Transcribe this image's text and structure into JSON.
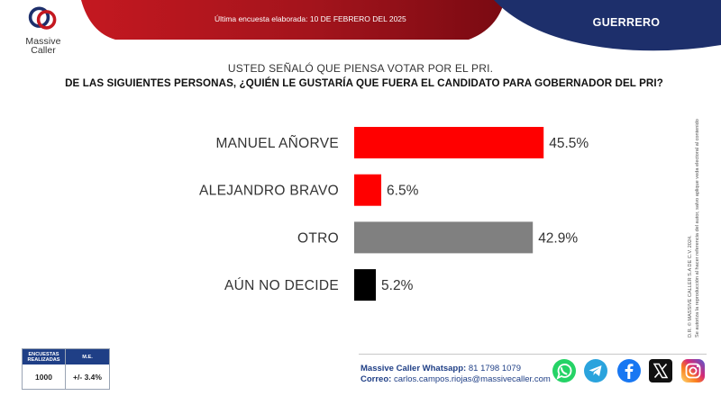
{
  "header": {
    "logo_name": "Massive",
    "logo_name2": "Caller",
    "survey_date": "Última encuesta elaborada: 10 DE FEBRERO DEL 2025",
    "state": "GUERRERO",
    "colors": {
      "red": "#a3141c",
      "navy": "#1d2f6b"
    }
  },
  "question": {
    "line1": "USTED SEÑALÓ QUE PIENSA VOTAR POR EL PRI.",
    "line2": "DE LAS SIGUIENTES PERSONAS, ¿QUIÉN LE GUSTARÍA QUE FUERA EL CANDIDATO PARA GOBERNADOR DEL PRI?"
  },
  "chart_data": {
    "type": "bar",
    "orientation": "horizontal",
    "categories": [
      "MANUEL AÑORVE",
      "ALEJANDRO BRAVO",
      "OTRO",
      "AÚN NO DECIDE"
    ],
    "values": [
      45.5,
      6.5,
      42.9,
      5.2
    ],
    "value_labels": [
      "45.5%",
      "6.5%",
      "42.9%",
      "5.2%"
    ],
    "colors": [
      "#ff0000",
      "#ff0000",
      "#808080",
      "#000000"
    ],
    "xlim": [
      0,
      100
    ],
    "grid": false
  },
  "copyright": {
    "line1": "D.R. © MASSIVE CALLER S.A DE C.V. 2024.",
    "line2": "Se autoriza la reproducción al hacer referencia del autor, salvo aplique veda electoral al contenido"
  },
  "stats": {
    "col1_header": "ENCUESTAS REALIZADAS",
    "col2_header": "M.E.",
    "col1_value": "1000",
    "col2_value": "+/- 3.4%"
  },
  "contact": {
    "whatsapp_label": "Massive Caller Whatsapp:",
    "whatsapp_value": "81 1798 1079",
    "email_label": "Correo:",
    "email_value": "carlos.campos.riojas@massivecaller.com"
  },
  "social_icons": [
    "whatsapp-icon",
    "telegram-icon",
    "facebook-icon",
    "x-icon",
    "instagram-icon"
  ]
}
